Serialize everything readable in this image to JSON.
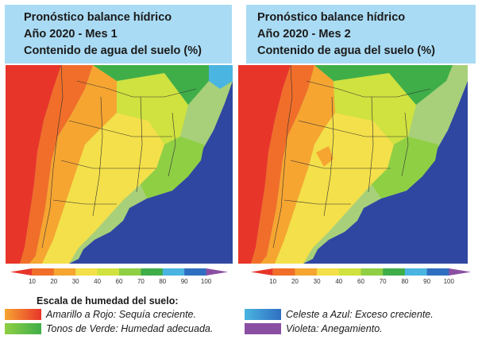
{
  "panels": [
    {
      "title_lines": [
        "Pronóstico balance hídrico",
        "Año 2020 - Mes 1",
        "Contenido de agua del suelo (%)"
      ]
    },
    {
      "title_lines": [
        "Pronóstico balance hídrico",
        "Año 2020 - Mes 2",
        "Contenido de agua del suelo (%)"
      ]
    }
  ],
  "colorbar": {
    "ticks": [
      "10",
      "20",
      "30",
      "40",
      "60",
      "70",
      "80",
      "90",
      "100"
    ],
    "colors": [
      "#e8352a",
      "#f06e2a",
      "#f6a531",
      "#f4e04a",
      "#cfe23f",
      "#8fcf44",
      "#3fae49",
      "#4ab5e0",
      "#2f6fc2",
      "#8a4fa3"
    ]
  },
  "legend": {
    "title": "Escala de humedad del suelo:",
    "items": [
      {
        "text": "Amarillo a Rojo: Sequía creciente.",
        "colors": [
          "#f6a531",
          "#e8352a"
        ]
      },
      {
        "text": "Tonos de Verde: Humedad adecuada.",
        "colors": [
          "#8fcf44",
          "#3fae49"
        ]
      },
      {
        "text": "Celeste a Azul: Exceso creciente.",
        "colors": [
          "#4ab5e0",
          "#2f6fc2"
        ]
      },
      {
        "text": "Violeta: Anegamiento.",
        "colors": [
          "#8a4fa3",
          "#8a4fa3"
        ]
      }
    ]
  },
  "map_colors": {
    "ocean": "#3047a1",
    "neighbor": "#a8d07a",
    "red": "#e8352a",
    "orange": "#f06e2a",
    "light_orange": "#f6a531",
    "yellow": "#f4e04a",
    "light_green": "#cfe23f",
    "green": "#8fcf44",
    "dark_green": "#3fae49",
    "cyan": "#4ab5e0"
  }
}
